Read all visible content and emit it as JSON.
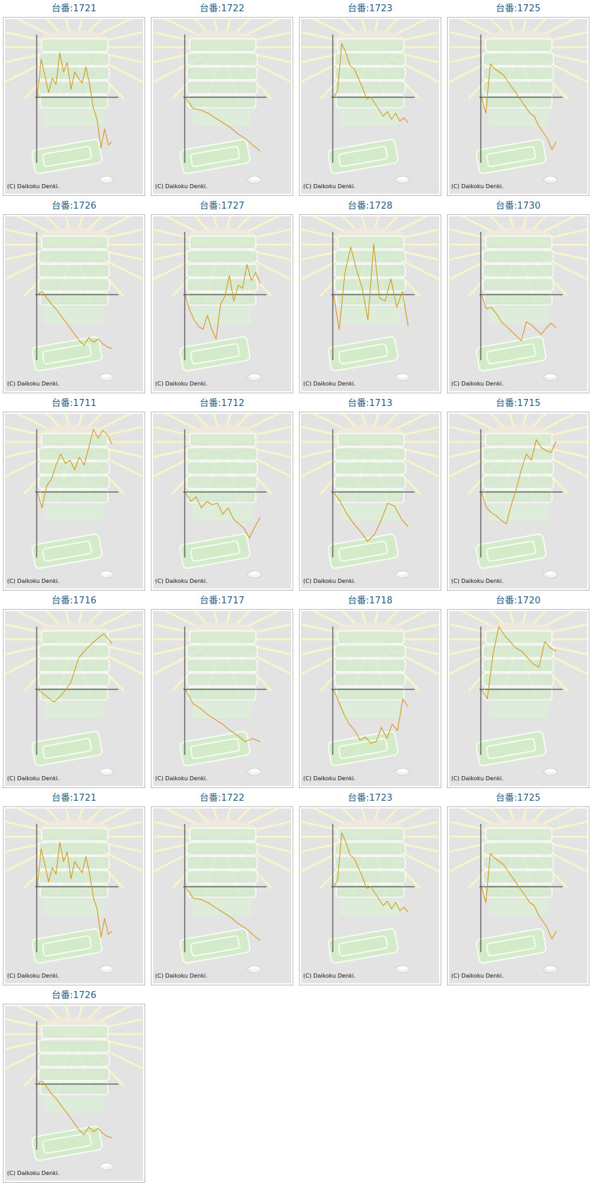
{
  "chart_data": [
    {
      "type": "line",
      "title": "台番:1721",
      "copyright": "(C) Daikoku Denki.",
      "series_color": "#d49a1c",
      "values": [
        0,
        1200,
        700,
        150,
        600,
        400,
        1400,
        800,
        1100,
        250,
        800,
        600,
        450,
        950,
        400,
        -350,
        -700,
        -1600,
        -1000,
        -1500,
        -1400
      ]
    },
    {
      "type": "line",
      "title": "台番:1722",
      "copyright": "(C) Daikoku Denki.",
      "series_color": "#d49a1c",
      "values": [
        0,
        -350,
        -400,
        -500,
        -650,
        -800,
        -950,
        -1150,
        -1300,
        -1500,
        -1700
      ]
    },
    {
      "type": "line",
      "title": "台番:1723",
      "copyright": "(C) Daikoku Denki.",
      "series_color": "#d49a1c",
      "values": [
        0,
        200,
        1700,
        1400,
        1000,
        900,
        600,
        300,
        -50,
        0,
        -200,
        -400,
        -600,
        -450,
        -700,
        -500,
        -750,
        -650,
        -800
      ]
    },
    {
      "type": "line",
      "title": "台番:1725",
      "copyright": "(C) Daikoku Denki.",
      "series_color": "#d49a1c",
      "values": [
        0,
        -500,
        1050,
        900,
        800,
        700,
        500,
        300,
        100,
        -100,
        -300,
        -500,
        -600,
        -900,
        -1100,
        -1300,
        -1650,
        -1400
      ]
    },
    {
      "type": "line",
      "title": "台番:1726",
      "copyright": "(C) Daikoku Denki.",
      "series_color": "#d49a1c",
      "values": [
        0,
        100,
        -100,
        -300,
        -450,
        -650,
        -850,
        -1050,
        -1250,
        -1450,
        -1600,
        -1350,
        -1500,
        -1400,
        -1550,
        -1650,
        -1700
      ]
    },
    {
      "type": "line",
      "title": "台番:1727",
      "copyright": "(C) Daikoku Denki.",
      "series_color": "#d49a1c",
      "values": [
        0,
        -500,
        -800,
        -1000,
        -1100,
        -650,
        -1100,
        -1400,
        -300,
        -50,
        600,
        -200,
        300,
        200,
        950,
        450,
        700,
        350
      ]
    },
    {
      "type": "line",
      "title": "台番:1728",
      "copyright": "(C) Daikoku Denki.",
      "series_color": "#d49a1c",
      "values": [
        0,
        -1100,
        700,
        1500,
        800,
        200,
        -800,
        1600,
        -100,
        -200,
        500,
        -400,
        100,
        -1000
      ]
    },
    {
      "type": "line",
      "title": "台番:1730",
      "copyright": "(C) Daikoku Denki.",
      "series_color": "#d49a1c",
      "values": [
        0,
        -450,
        -400,
        -600,
        -850,
        -1000,
        -1150,
        -1300,
        -1450,
        -850,
        -950,
        -1100,
        -1250,
        -1050,
        -900,
        -1050
      ]
    },
    {
      "type": "line",
      "title": "台番:1711",
      "copyright": "(C) Daikoku Denki.",
      "series_color": "#d49a1c",
      "values": [
        0,
        -500,
        200,
        400,
        850,
        1200,
        900,
        1000,
        700,
        1100,
        850,
        1400,
        2000,
        1700,
        1950,
        1800,
        1500
      ]
    },
    {
      "type": "line",
      "title": "台番:1712",
      "copyright": "(C) Daikoku Denki.",
      "series_color": "#d49a1c",
      "values": [
        0,
        -300,
        -150,
        -500,
        -300,
        -400,
        -350,
        -700,
        -500,
        -850,
        -1000,
        -1150,
        -1450,
        -1100,
        -800
      ]
    },
    {
      "type": "line",
      "title": "台番:1713",
      "copyright": "(C) Daikoku Denki.",
      "series_color": "#d49a1c",
      "values": [
        0,
        -300,
        -700,
        -1000,
        -1250,
        -1550,
        -1350,
        -900,
        -350,
        -450,
        -850,
        -1100
      ]
    },
    {
      "type": "line",
      "title": "台番:1715",
      "copyright": "(C) Daikoku Denki.",
      "series_color": "#d49a1c",
      "values": [
        0,
        -500,
        -650,
        -750,
        -900,
        -1000,
        -400,
        100,
        700,
        1200,
        1000,
        1650,
        1400,
        1300,
        1250,
        1600
      ]
    },
    {
      "type": "line",
      "title": "台番:1716",
      "copyright": "(C) Daikoku Denki.",
      "series_color": "#d49a1c",
      "values": [
        0,
        -200,
        -400,
        -150,
        200,
        1000,
        1300,
        1550,
        1750,
        1450
      ]
    },
    {
      "type": "line",
      "title": "台番:1717",
      "copyright": "(C) Daikoku Denki.",
      "series_color": "#d49a1c",
      "values": [
        0,
        -450,
        -600,
        -800,
        -950,
        -1100,
        -1300,
        -1450,
        -1650,
        -1550,
        -1650
      ]
    },
    {
      "type": "line",
      "title": "台番:1718",
      "copyright": "(C) Daikoku Denki.",
      "series_color": "#d49a1c",
      "values": [
        0,
        -400,
        -800,
        -1100,
        -1300,
        -1600,
        -1500,
        -1700,
        -1650,
        -1200,
        -1550,
        -1100,
        -1300,
        -300,
        -550
      ]
    },
    {
      "type": "line",
      "title": "台番:1720",
      "copyright": "(C) Daikoku Denki.",
      "series_color": "#d49a1c",
      "values": [
        0,
        -300,
        1100,
        2000,
        1700,
        1500,
        1300,
        1200,
        1000,
        800,
        700,
        1500,
        1300,
        1200
      ]
    },
    {
      "type": "line",
      "title": "台番:1721",
      "copyright": "(C) Daikoku Denki.",
      "series_color": "#d49a1c",
      "values": [
        0,
        1200,
        700,
        150,
        600,
        400,
        1400,
        800,
        1100,
        250,
        800,
        600,
        450,
        950,
        400,
        -350,
        -700,
        -1600,
        -1000,
        -1500,
        -1400
      ]
    },
    {
      "type": "line",
      "title": "台番:1722",
      "copyright": "(C) Daikoku Denki.",
      "series_color": "#d49a1c",
      "values": [
        0,
        -350,
        -400,
        -500,
        -650,
        -800,
        -950,
        -1150,
        -1300,
        -1500,
        -1700
      ]
    },
    {
      "type": "line",
      "title": "台番:1723",
      "copyright": "(C) Daikoku Denki.",
      "series_color": "#d49a1c",
      "values": [
        0,
        200,
        1700,
        1400,
        1000,
        900,
        600,
        300,
        -50,
        0,
        -200,
        -400,
        -600,
        -450,
        -700,
        -500,
        -750,
        -650,
        -800
      ]
    },
    {
      "type": "line",
      "title": "台番:1725",
      "copyright": "(C) Daikoku Denki.",
      "series_color": "#d49a1c",
      "values": [
        0,
        -500,
        1050,
        900,
        800,
        700,
        500,
        300,
        100,
        -100,
        -300,
        -500,
        -600,
        -900,
        -1100,
        -1300,
        -1650,
        -1400
      ]
    },
    {
      "type": "line",
      "title": "台番:1726",
      "copyright": "(C) Daikoku Denki.",
      "series_color": "#d49a1c",
      "values": [
        0,
        100,
        -100,
        -300,
        -450,
        -650,
        -850,
        -1050,
        -1250,
        -1450,
        -1600,
        -1350,
        -1500,
        -1400,
        -1550,
        -1650,
        -1700
      ]
    }
  ]
}
